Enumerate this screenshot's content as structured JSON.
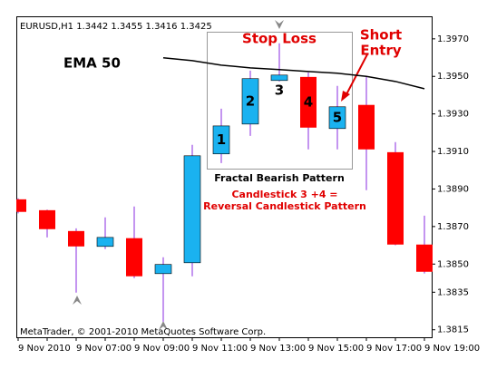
{
  "chart_data": {
    "type": "candlestick",
    "header": "EURUSD,H1  1.3442 1.3455 1.3416 1.3425",
    "footer": "MetaTrader, © 2001-2010 MetaQuotes Software Corp.",
    "categories": [
      "9 Nov 2010",
      null,
      "9 Nov 07:00",
      null,
      "9 Nov 09:00",
      null,
      "9 Nov 11:00",
      null,
      "9 Nov 13:00",
      null,
      "9 Nov 15:00",
      null,
      "9 Nov 17:00",
      null,
      "9 Nov 19:00"
    ],
    "open": [
      1.38845,
      1.38787,
      1.38676,
      1.38594,
      1.38638,
      1.38449,
      1.38507,
      1.39087,
      1.39246,
      1.39478,
      1.39497,
      1.39222,
      1.39348,
      1.39096,
      1.38604
    ],
    "high": [
      1.3885,
      1.3879,
      1.3869,
      1.38749,
      1.38807,
      1.38536,
      1.39135,
      1.39328,
      1.39531,
      1.39676,
      1.39521,
      1.39449,
      1.39497,
      1.3915,
      1.38758
    ],
    "low": [
      1.3877,
      1.38642,
      1.38348,
      1.3858,
      1.38425,
      1.38193,
      1.38435,
      1.39038,
      1.39183,
      1.39473,
      1.39111,
      1.39111,
      1.38894,
      1.386,
      1.3845
    ],
    "close": [
      1.38778,
      1.38686,
      1.38594,
      1.38642,
      1.38435,
      1.38498,
      1.39077,
      1.39236,
      1.39488,
      1.39507,
      1.39227,
      1.39338,
      1.39111,
      1.38604,
      1.38459
    ],
    "up_color": "#1ab2f0",
    "down_color": "#ff0000",
    "wick_color": "#8a2be2",
    "overlay": {
      "name": "EMA 50",
      "color": "#000000",
      "values": [
        null,
        null,
        null,
        null,
        null,
        1.39599,
        1.39584,
        1.3956,
        1.39545,
        1.39536,
        1.39526,
        1.39517,
        1.395,
        1.39473,
        1.39434
      ]
    },
    "ylim": [
      1.3811,
      1.3982
    ],
    "yticks": [
      {
        "value": 1.397,
        "label": "1.3970"
      },
      {
        "value": 1.395,
        "label": "1.3950"
      },
      {
        "value": 1.393,
        "label": "1.3930"
      },
      {
        "value": 1.391,
        "label": "1.3910"
      },
      {
        "value": 1.389,
        "label": "1.3890"
      },
      {
        "value": 1.387,
        "label": "1.3870"
      },
      {
        "value": 1.385,
        "label": "1.3850"
      },
      {
        "value": 1.3835,
        "label": "1.3835"
      },
      {
        "value": 1.3815,
        "label": "1.3815"
      }
    ],
    "annotations": {
      "stop_loss": "Stop Loss",
      "short_entry": [
        "Short",
        "Entry"
      ],
      "candle_numbers": [
        "1",
        "2",
        "3",
        "4",
        "5"
      ],
      "pattern_box": "Fractal Bearish Pattern",
      "reversal": [
        "Candlestick 3 +4 =",
        "Reversal Candlestick Pattern"
      ]
    }
  }
}
